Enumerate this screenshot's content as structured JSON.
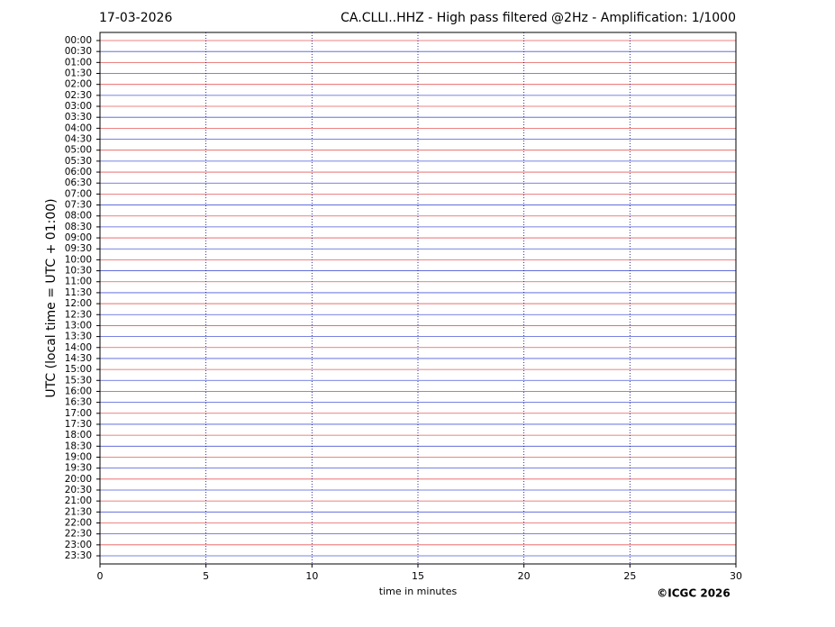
{
  "chart_data": {
    "type": "helicorder",
    "date": "17-03-2026",
    "title": "CA.CLLI..HHZ - High pass filtered @2Hz - Amplification: 1/1000",
    "y_label": "UTC (local time = UTC + 01:00)",
    "x_label": "time in minutes",
    "copyright": "©ICGC 2026",
    "categories": [
      "00:00",
      "00:30",
      "01:00",
      "01:30",
      "02:00",
      "02:30",
      "03:00",
      "03:30",
      "04:00",
      "04:30",
      "05:00",
      "05:30",
      "06:00",
      "06:30",
      "07:00",
      "07:30",
      "08:00",
      "08:30",
      "09:00",
      "09:30",
      "10:00",
      "10:30",
      "11:00",
      "11:30",
      "12:00",
      "12:30",
      "13:00",
      "13:30",
      "14:00",
      "14:30",
      "15:00",
      "15:30",
      "16:00",
      "16:30",
      "17:00",
      "17:30",
      "18:00",
      "18:30",
      "19:00",
      "19:30",
      "20:00",
      "20:30",
      "21:00",
      "21:30",
      "22:00",
      "22:30",
      "23:00",
      "23:30"
    ],
    "colors": [
      "#e03030",
      "#2030d0"
    ],
    "xlim": [
      0,
      30
    ],
    "xticks": [
      0,
      5,
      10,
      15,
      20,
      25,
      30
    ],
    "grid": true
  }
}
